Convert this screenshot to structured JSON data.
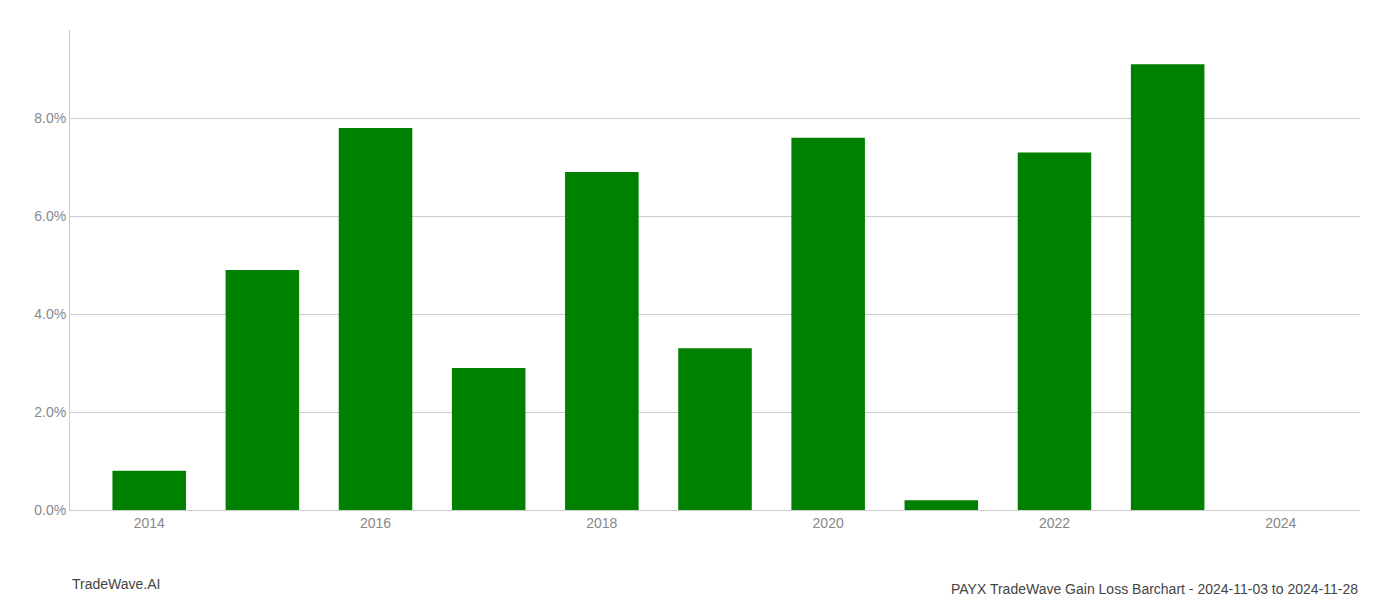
{
  "chart_data": {
    "type": "bar",
    "title": "PAYX TradeWave Gain Loss Barchart - 2024-11-03 to 2024-11-28",
    "annotations": [
      "TradeWave.AI"
    ],
    "x": [
      2014,
      2015,
      2016,
      2017,
      2018,
      2019,
      2020,
      2021,
      2022,
      2023
    ],
    "values": [
      0.008,
      0.049,
      0.078,
      0.029,
      0.069,
      0.033,
      0.076,
      0.002,
      0.073,
      0.091
    ],
    "color": "#008000",
    "xlim": [
      2013.3,
      2024.7
    ],
    "xticks": [
      2014,
      2016,
      2018,
      2020,
      2022,
      2024
    ],
    "ylim": [
      0,
      0.098
    ],
    "yticks": [
      {
        "value": 0.0,
        "label": "0.0%"
      },
      {
        "value": 0.02,
        "label": "2.0%"
      },
      {
        "value": 0.04,
        "label": "4.0%"
      },
      {
        "value": 0.06,
        "label": "6.0%"
      },
      {
        "value": 0.08,
        "label": "8.0%"
      }
    ],
    "grid": true
  }
}
